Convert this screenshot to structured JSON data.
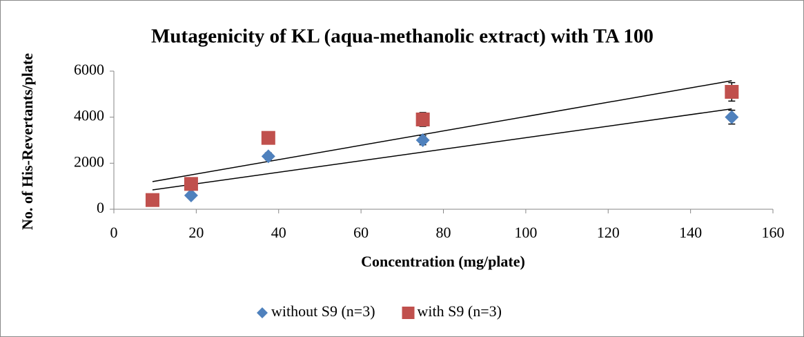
{
  "chart_data": {
    "type": "scatter",
    "title": "Mutagenicity of KL (aqua-methanolic extract) with TA 100",
    "x_label": "Concentration (mg/plate)",
    "y_label": "No. of His-Revertants/plate",
    "x": [
      9.375,
      18.75,
      37.5,
      75,
      150
    ],
    "series": [
      {
        "name": "without S9 (n=3)",
        "color": "#4f81bd",
        "marker": "diamond",
        "trendline": true,
        "values": [
          400,
          600,
          2300,
          3000,
          4000
        ],
        "error": [
          100,
          100,
          150,
          200,
          300
        ]
      },
      {
        "name": "with S9 (n=3)",
        "color": "#c0504d",
        "marker": "square",
        "trendline": true,
        "values": [
          400,
          1100,
          3100,
          3900,
          5100
        ],
        "error": [
          100,
          100,
          100,
          300,
          400
        ]
      }
    ],
    "xlim": [
      0,
      160
    ],
    "xticks": [
      0,
      20,
      40,
      60,
      80,
      100,
      120,
      140,
      160
    ],
    "ylim": [
      0,
      6000
    ],
    "yticks": [
      0,
      2000,
      4000,
      6000
    ],
    "legend": "bottom"
  }
}
